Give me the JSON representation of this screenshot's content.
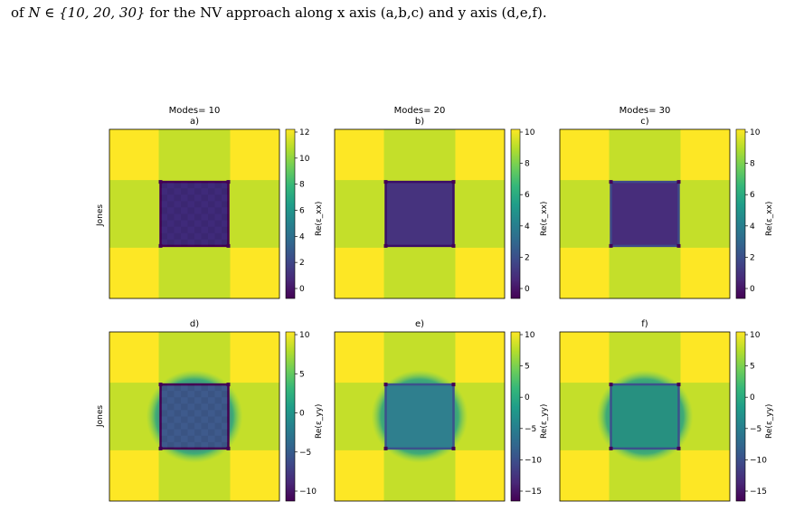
{
  "caption": {
    "prefix": "of ",
    "math": "N ∈ {10, 20, 30}",
    "suffix": " for the NV approach along x axis (a,b,c) and y axis (d,e,f)."
  },
  "row_labels": [
    "Jones",
    "Jones"
  ],
  "colors": {
    "outer": "#fde725",
    "cross": "#c4df2a",
    "viridis": [
      "#440154",
      "#482878",
      "#3e4989",
      "#31688e",
      "#26828e",
      "#1f9e89",
      "#35b779",
      "#6ece58",
      "#b5de2b",
      "#fde725"
    ]
  },
  "panels": [
    {
      "id": "a",
      "heading": "Modes= 10",
      "letter": "a)",
      "cbar_label": "Re(ε_xx)",
      "center_color": "#3f2a7a",
      "edge_color": "#440154",
      "ticks": [
        "12",
        "10",
        "8",
        "6",
        "4",
        "2",
        "0"
      ]
    },
    {
      "id": "b",
      "heading": "Modes= 20",
      "letter": "b)",
      "cbar_label": "Re(ε_xx)",
      "center_color": "#46337e",
      "edge_color": "#3a0f66",
      "ticks": [
        "10",
        "8",
        "6",
        "4",
        "2",
        "0"
      ]
    },
    {
      "id": "c",
      "heading": "Modes= 30",
      "letter": "c)",
      "cbar_label": "Re(ε_xx)",
      "center_color": "#472d7b",
      "edge_color": "#3e4989",
      "ticks": [
        "10",
        "8",
        "6",
        "4",
        "2",
        "0"
      ]
    },
    {
      "id": "d",
      "heading": "",
      "letter": "d)",
      "cbar_label": "Re(ε_yy)",
      "center_color": "#3e5a8c",
      "edge_color": "#440154",
      "ticks": [
        "10",
        "5",
        "0",
        "−5",
        "−10"
      ]
    },
    {
      "id": "e",
      "heading": "",
      "letter": "e)",
      "cbar_label": "Re(ε_yy)",
      "center_color": "#2f7f8e",
      "edge_color": "#3b528b",
      "ticks": [
        "10",
        "5",
        "0",
        "−5",
        "−10",
        "−15"
      ]
    },
    {
      "id": "f",
      "heading": "",
      "letter": "f)",
      "cbar_label": "Re(ε_yy)",
      "center_color": "#279080",
      "edge_color": "#3b528b",
      "ticks": [
        "10",
        "5",
        "0",
        "−5",
        "−10",
        "−15"
      ]
    }
  ]
}
